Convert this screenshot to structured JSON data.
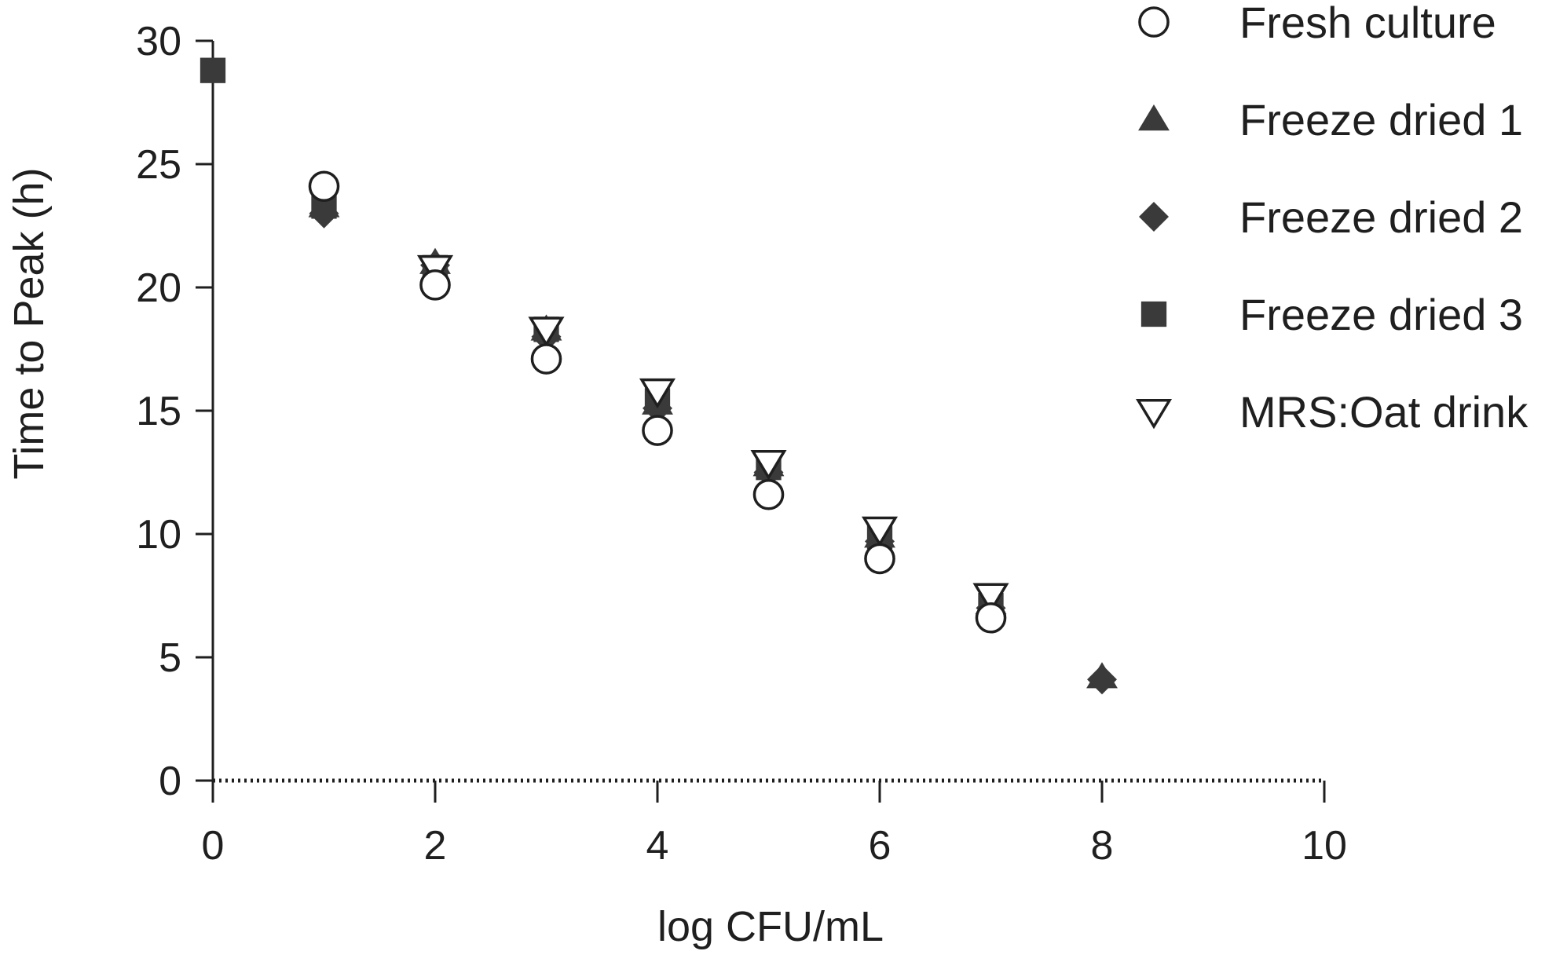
{
  "chart_data": {
    "type": "scatter",
    "xlabel": "log CFU/mL",
    "ylabel": "Time to Peak (h)",
    "xlim": [
      0,
      10
    ],
    "ylim": [
      0,
      30
    ],
    "x_ticks": [
      0,
      2,
      4,
      6,
      8,
      10
    ],
    "y_ticks": [
      0,
      5,
      10,
      15,
      20,
      25,
      30
    ],
    "grid": false,
    "zero_line": "dotted",
    "legend_position": "top-right",
    "series": [
      {
        "name": "Fresh culture",
        "marker": "open-circle",
        "color": "#ffffff",
        "stroke": "#1f1f1f",
        "points": [
          [
            1,
            24.1
          ],
          [
            2,
            20.1
          ],
          [
            3,
            17.1
          ],
          [
            4,
            14.2
          ],
          [
            5,
            11.6
          ],
          [
            6,
            9.0
          ],
          [
            7,
            6.6
          ]
        ]
      },
      {
        "name": "Freeze dried 1",
        "marker": "triangle-up",
        "color": "#3a3a3a",
        "points": [
          [
            1,
            23.3
          ],
          [
            2,
            21.0
          ],
          [
            3,
            18.3
          ],
          [
            4,
            15.3
          ],
          [
            5,
            12.8
          ],
          [
            6,
            9.9
          ],
          [
            7,
            7.2
          ],
          [
            8,
            4.2
          ]
        ]
      },
      {
        "name": "Freeze dried 2",
        "marker": "diamond",
        "color": "#3a3a3a",
        "points": [
          [
            1,
            23.0
          ],
          [
            2,
            20.9
          ],
          [
            3,
            18.0
          ],
          [
            4,
            15.1
          ],
          [
            5,
            12.5
          ],
          [
            6,
            9.7
          ],
          [
            7,
            7.0
          ],
          [
            8,
            4.1
          ]
        ]
      },
      {
        "name": "Freeze dried 3",
        "marker": "square",
        "color": "#3a3a3a",
        "points": [
          [
            0,
            28.8
          ],
          [
            1,
            23.3
          ],
          [
            2,
            20.8
          ],
          [
            3,
            18.3
          ],
          [
            4,
            15.4
          ],
          [
            5,
            12.7
          ],
          [
            6,
            9.9
          ],
          [
            7,
            7.1
          ]
        ]
      },
      {
        "name": "MRS:Oat drink",
        "marker": "open-triangle-down",
        "color": "#ffffff",
        "stroke": "#1f1f1f",
        "points": [
          [
            2,
            20.8
          ],
          [
            3,
            18.3
          ],
          [
            4,
            15.8
          ],
          [
            5,
            12.9
          ],
          [
            6,
            10.2
          ],
          [
            7,
            7.5
          ]
        ]
      }
    ]
  }
}
